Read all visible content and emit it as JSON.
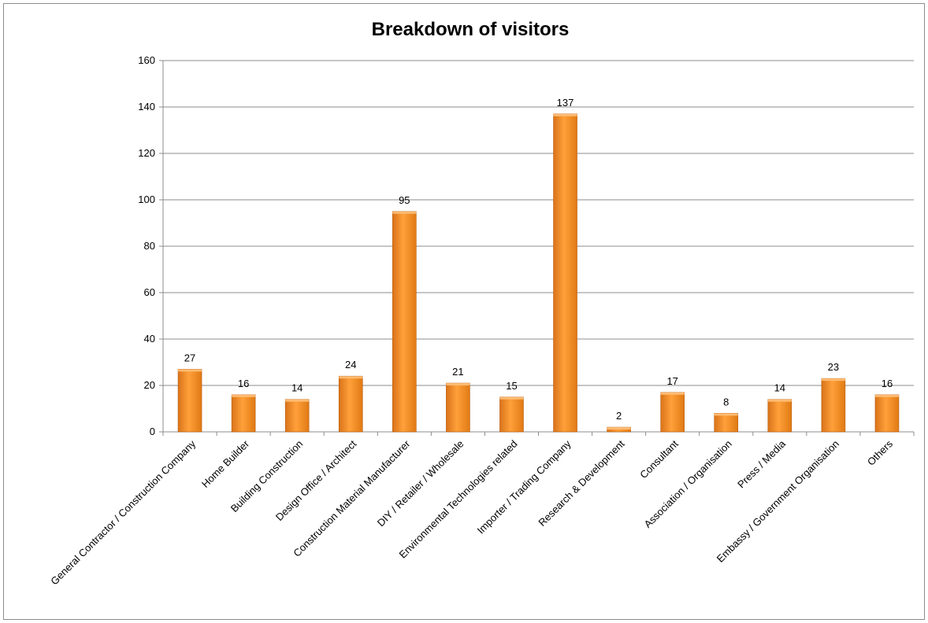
{
  "chart_data": {
    "type": "bar",
    "title": "Breakdown of visitors",
    "xlabel": "",
    "ylabel": "",
    "ylim": [
      0,
      160
    ],
    "yticks": [
      0,
      20,
      40,
      60,
      80,
      100,
      120,
      140,
      160
    ],
    "grid": true,
    "legend": "none",
    "bar_color": "#f7941d",
    "bar_color_dark": "#c7650f",
    "bar_color_light": "#ffc07a",
    "categories": [
      "General Contractor / Construction Company",
      "Home Builder",
      "Building Construction",
      "Design Office / Architect",
      "Construction Material Manufacturer",
      "DIY / Retailer / Wholesale",
      "Environmental Technologies related",
      "Importer / Trading Company",
      "Research & Development",
      "Consultant",
      "Association / Organisation",
      "Press / Media",
      "Embassy / Government Organisation",
      "Others"
    ],
    "values": [
      27,
      16,
      14,
      24,
      95,
      21,
      15,
      137,
      2,
      17,
      8,
      14,
      23,
      16
    ]
  }
}
